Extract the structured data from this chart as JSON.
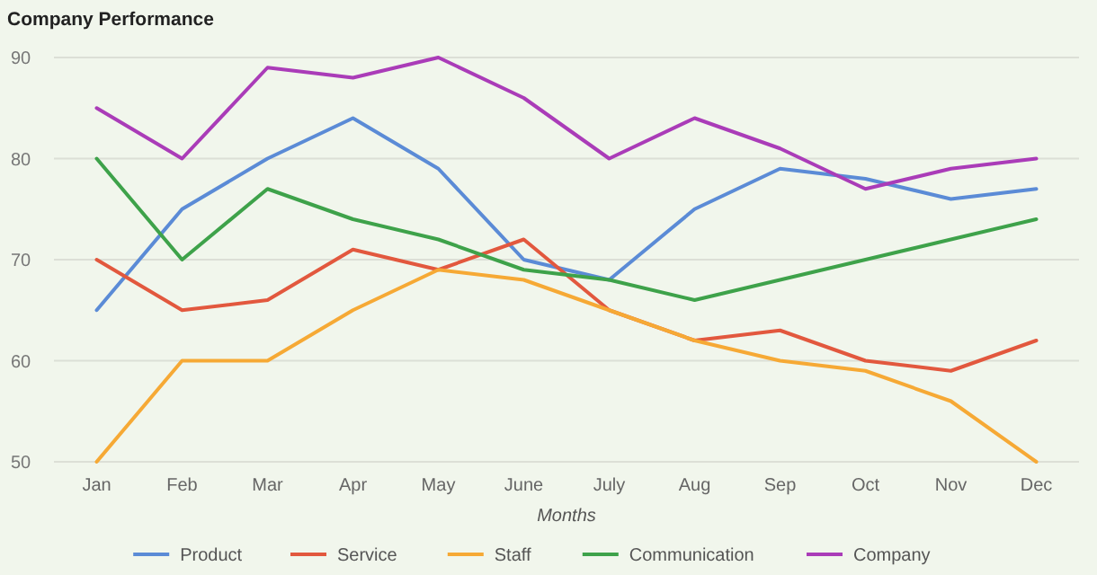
{
  "chart_data": {
    "type": "line",
    "title": "Company Performance",
    "xlabel": "Months",
    "categories": [
      "Jan",
      "Feb",
      "Mar",
      "Apr",
      "May",
      "June",
      "July",
      "Aug",
      "Sep",
      "Oct",
      "Nov",
      "Dec"
    ],
    "series": [
      {
        "name": "Product",
        "color": "#5b8bd6",
        "values": [
          65,
          75,
          80,
          84,
          79,
          70,
          68,
          75,
          79,
          78,
          76,
          77
        ]
      },
      {
        "name": "Service",
        "color": "#e2583e",
        "values": [
          70,
          65,
          66,
          71,
          69,
          72,
          65,
          62,
          63,
          60,
          59,
          62
        ]
      },
      {
        "name": "Staff",
        "color": "#f6a935",
        "values": [
          50,
          60,
          60,
          65,
          69,
          68,
          65,
          62,
          60,
          59,
          56,
          50
        ]
      },
      {
        "name": "Communication",
        "color": "#3ea24a",
        "values": [
          80,
          70,
          77,
          74,
          72,
          69,
          68,
          66,
          68,
          70,
          72,
          74
        ]
      },
      {
        "name": "Company",
        "color": "#aa3cb8",
        "values": [
          85,
          80,
          89,
          88,
          90,
          86,
          80,
          84,
          81,
          77,
          79,
          80
        ]
      }
    ],
    "ylim": [
      50,
      90
    ],
    "yticks": [
      50,
      60,
      70,
      80,
      90
    ],
    "grid": "y",
    "legend": "bottom",
    "marker": "none",
    "line_style": "solid"
  }
}
